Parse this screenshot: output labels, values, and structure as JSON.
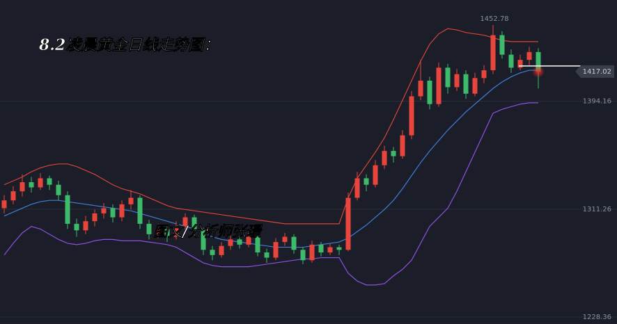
{
  "chart_data": {
    "type": "candlestick",
    "title": "8.2凌晨黄金日线走势图：",
    "watermark": "图文/分析师张璟",
    "ylim": [
      1223,
      1472
    ],
    "yticks": [
      1228.36,
      1311.26,
      1394.16
    ],
    "grid": true,
    "up_color": "#e8453c",
    "down_color": "#3dbb6a",
    "upper_color": "#d9453a",
    "middle_color": "#3f7fd8",
    "lower_color": "#8c52e0",
    "candles": [
      [
        1312,
        1322,
        1308,
        1318
      ],
      [
        1318,
        1329,
        1315,
        1325
      ],
      [
        1325,
        1338,
        1321,
        1332
      ],
      [
        1332,
        1336,
        1324,
        1328
      ],
      [
        1328,
        1339,
        1326,
        1335
      ],
      [
        1335,
        1337,
        1326,
        1330
      ],
      [
        1330,
        1333,
        1318,
        1322
      ],
      [
        1322,
        1325,
        1296,
        1300
      ],
      [
        1300,
        1304,
        1290,
        1295
      ],
      [
        1295,
        1306,
        1292,
        1302
      ],
      [
        1302,
        1311,
        1298,
        1308
      ],
      [
        1308,
        1316,
        1304,
        1312
      ],
      [
        1312,
        1315,
        1301,
        1305
      ],
      [
        1305,
        1318,
        1302,
        1315
      ],
      [
        1315,
        1326,
        1311,
        1320
      ],
      [
        1320,
        1322,
        1296,
        1300
      ],
      [
        1300,
        1303,
        1288,
        1292
      ],
      [
        1292,
        1300,
        1289,
        1296
      ],
      [
        1296,
        1298,
        1286,
        1290
      ],
      [
        1290,
        1302,
        1288,
        1298
      ],
      [
        1298,
        1308,
        1294,
        1305
      ],
      [
        1305,
        1307,
        1291,
        1295
      ],
      [
        1295,
        1297,
        1276,
        1280
      ],
      [
        1280,
        1283,
        1272,
        1276
      ],
      [
        1276,
        1286,
        1274,
        1283
      ],
      [
        1283,
        1291,
        1280,
        1288
      ],
      [
        1288,
        1290,
        1281,
        1284
      ],
      [
        1284,
        1293,
        1282,
        1290
      ],
      [
        1290,
        1292,
        1275,
        1278
      ],
      [
        1278,
        1281,
        1270,
        1274
      ],
      [
        1274,
        1289,
        1272,
        1286
      ],
      [
        1286,
        1293,
        1283,
        1290
      ],
      [
        1290,
        1292,
        1277,
        1280
      ],
      [
        1280,
        1282,
        1269,
        1272
      ],
      [
        1272,
        1287,
        1270,
        1284
      ],
      [
        1284,
        1286,
        1275,
        1278
      ],
      [
        1278,
        1285,
        1276,
        1282
      ],
      [
        1282,
        1284,
        1276,
        1280
      ],
      [
        1280,
        1324,
        1279,
        1320
      ],
      [
        1320,
        1340,
        1318,
        1335
      ],
      [
        1335,
        1338,
        1325,
        1330
      ],
      [
        1330,
        1349,
        1328,
        1345
      ],
      [
        1345,
        1360,
        1342,
        1356
      ],
      [
        1356,
        1359,
        1347,
        1352
      ],
      [
        1352,
        1372,
        1350,
        1368
      ],
      [
        1368,
        1402,
        1365,
        1398
      ],
      [
        1398,
        1426,
        1395,
        1410
      ],
      [
        1410,
        1413,
        1388,
        1392
      ],
      [
        1392,
        1424,
        1390,
        1420
      ],
      [
        1420,
        1423,
        1400,
        1405
      ],
      [
        1405,
        1419,
        1402,
        1415
      ],
      [
        1415,
        1418,
        1396,
        1400
      ],
      [
        1400,
        1416,
        1398,
        1412
      ],
      [
        1412,
        1422,
        1408,
        1418
      ],
      [
        1418,
        1452.78,
        1415,
        1445
      ],
      [
        1445,
        1448,
        1427,
        1430
      ],
      [
        1430,
        1434,
        1416,
        1420
      ],
      [
        1420,
        1430,
        1418,
        1426
      ],
      [
        1426,
        1436,
        1422,
        1432
      ],
      [
        1432,
        1435,
        1404,
        1417.02
      ]
    ],
    "upper": [
      1330,
      1333,
      1336,
      1340,
      1343,
      1345,
      1346,
      1346,
      1344,
      1341,
      1338,
      1334,
      1330,
      1327,
      1325,
      1323,
      1320,
      1317,
      1314,
      1312,
      1311,
      1310,
      1309,
      1308,
      1307,
      1306,
      1305,
      1304,
      1303,
      1302,
      1301,
      1300,
      1300,
      1300,
      1300,
      1300,
      1300,
      1300,
      1320,
      1335,
      1345,
      1355,
      1366,
      1380,
      1395,
      1410,
      1425,
      1438,
      1446,
      1450,
      1449,
      1447,
      1446,
      1445,
      1443,
      1441,
      1440,
      1440,
      1440,
      1440
    ],
    "middle": [
      1306,
      1309,
      1312,
      1315,
      1317,
      1318,
      1318,
      1317,
      1316,
      1315,
      1314,
      1313,
      1312,
      1311,
      1310,
      1308,
      1306,
      1304,
      1302,
      1300,
      1298,
      1296,
      1293,
      1290,
      1288,
      1287,
      1286,
      1285,
      1284,
      1283,
      1282,
      1282,
      1282,
      1282,
      1283,
      1284,
      1285,
      1286,
      1289,
      1294,
      1299,
      1305,
      1311,
      1318,
      1327,
      1337,
      1347,
      1356,
      1364,
      1372,
      1379,
      1386,
      1392,
      1398,
      1404,
      1409,
      1413,
      1416,
      1418,
      1418
    ],
    "lower": [
      1276,
      1285,
      1293,
      1298,
      1296,
      1292,
      1288,
      1285,
      1284,
      1285,
      1287,
      1288,
      1288,
      1287,
      1287,
      1287,
      1286,
      1285,
      1284,
      1282,
      1278,
      1274,
      1270,
      1268,
      1267,
      1267,
      1267,
      1267,
      1268,
      1269,
      1270,
      1271,
      1272,
      1273,
      1273,
      1274,
      1274,
      1274,
      1262,
      1256,
      1253,
      1253,
      1254,
      1260,
      1265,
      1272,
      1285,
      1298,
      1305,
      1312,
      1325,
      1340,
      1355,
      1370,
      1385,
      1388,
      1390,
      1392,
      1393,
      1393
    ]
  }
}
